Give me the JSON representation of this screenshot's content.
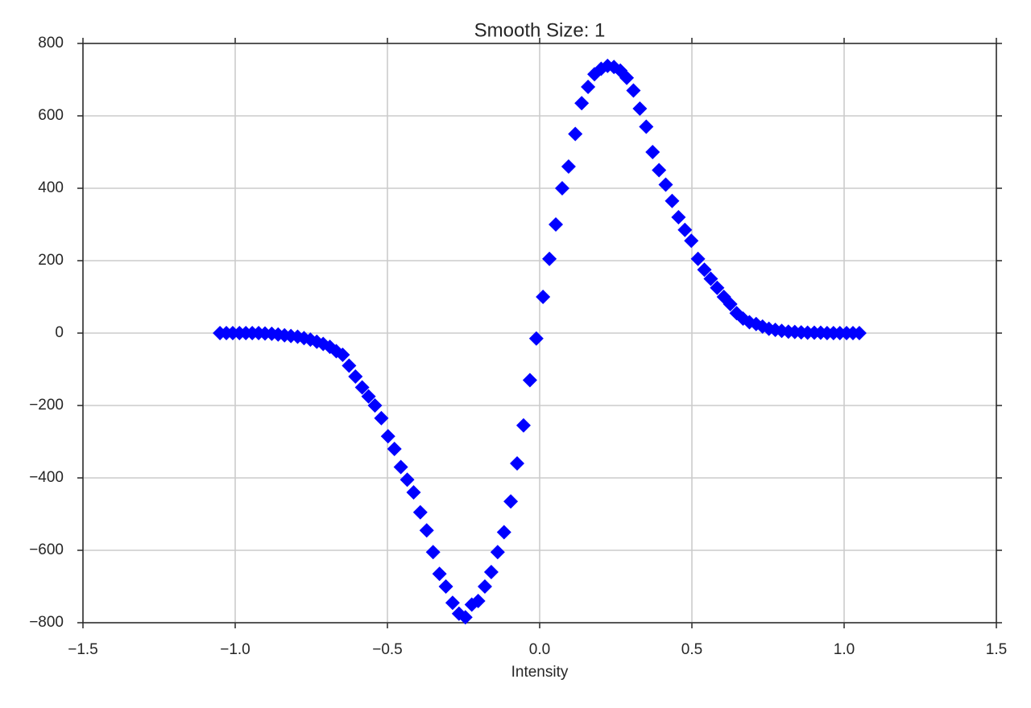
{
  "chart_data": {
    "type": "scatter",
    "title": "Smooth Size: 1",
    "x_label": "Intensity",
    "marker": "diamond",
    "grid": true,
    "xlim": [
      -1.5,
      1.5
    ],
    "xticks": [
      {
        "value": -1.5,
        "label": "−1.5"
      },
      {
        "value": -1.0,
        "label": "−1.0"
      },
      {
        "value": -0.5,
        "label": "−0.5"
      },
      {
        "value": 0,
        "label": "0.0"
      },
      0.5,
      {
        "value": 1.0,
        "label": "1.0"
      },
      1.5
    ],
    "ylim": [
      -800,
      800
    ],
    "yticks": [
      {
        "value": -800,
        "label": "−800"
      },
      {
        "value": -600,
        "label": "−600"
      },
      {
        "value": -400,
        "label": "−400"
      },
      {
        "value": -200,
        "label": "−200"
      },
      0,
      200,
      400,
      600,
      800
    ],
    "series": [
      {
        "color": "#0000ff",
        "x": [
          -1.05,
          -1.029,
          -1.008,
          -0.986,
          -0.965,
          -0.944,
          -0.923,
          -0.902,
          -0.88,
          -0.859,
          -0.838,
          -0.817,
          -0.795,
          -0.774,
          -0.753,
          -0.732,
          -0.711,
          -0.689,
          -0.668,
          -0.647,
          -0.626,
          -0.605,
          -0.583,
          -0.562,
          -0.541,
          -0.52,
          -0.498,
          -0.477,
          -0.456,
          -0.435,
          -0.414,
          -0.392,
          -0.371,
          -0.35,
          -0.329,
          -0.308,
          -0.286,
          -0.265,
          -0.244,
          -0.223,
          -0.202,
          -0.18,
          -0.159,
          -0.138,
          -0.117,
          -0.095,
          -0.074,
          -0.053,
          -0.032,
          -0.011,
          0.011,
          0.032,
          0.053,
          0.074,
          0.095,
          0.117,
          0.138,
          0.159,
          0.18,
          0.202,
          0.223,
          0.244,
          0.265,
          0.286,
          0.308,
          0.329,
          0.35,
          0.371,
          0.392,
          0.414,
          0.435,
          0.456,
          0.477,
          0.498,
          0.52,
          0.541,
          0.562,
          0.583,
          0.605,
          0.626,
          0.647,
          0.668,
          0.689,
          0.711,
          0.732,
          0.753,
          0.774,
          0.795,
          0.817,
          0.838,
          0.859,
          0.88,
          0.902,
          0.923,
          0.944,
          0.965,
          0.986,
          1.008,
          1.029,
          1.05
        ],
        "values": [
          0,
          0,
          0,
          0,
          0,
          0,
          0,
          -1,
          -2,
          -4,
          -6,
          -8,
          -10,
          -14,
          -18,
          -24,
          -30,
          -38,
          -50,
          -60,
          -90,
          -120,
          -150,
          -175,
          -200,
          -235,
          -285,
          -320,
          -370,
          -405,
          -440,
          -495,
          -545,
          -605,
          -665,
          -700,
          -745,
          -775,
          -785,
          -750,
          -740,
          -700,
          -660,
          -605,
          -550,
          -465,
          -360,
          -255,
          -130,
          -15,
          100,
          205,
          300,
          400,
          460,
          550,
          635,
          680,
          715,
          730,
          738,
          735,
          725,
          705,
          670,
          620,
          570,
          500,
          450,
          410,
          365,
          320,
          285,
          255,
          205,
          175,
          150,
          125,
          100,
          80,
          55,
          40,
          30,
          25,
          18,
          12,
          9,
          6,
          4,
          3,
          2,
          1,
          1,
          1,
          0,
          0,
          0,
          0,
          0,
          0
        ]
      }
    ]
  }
}
